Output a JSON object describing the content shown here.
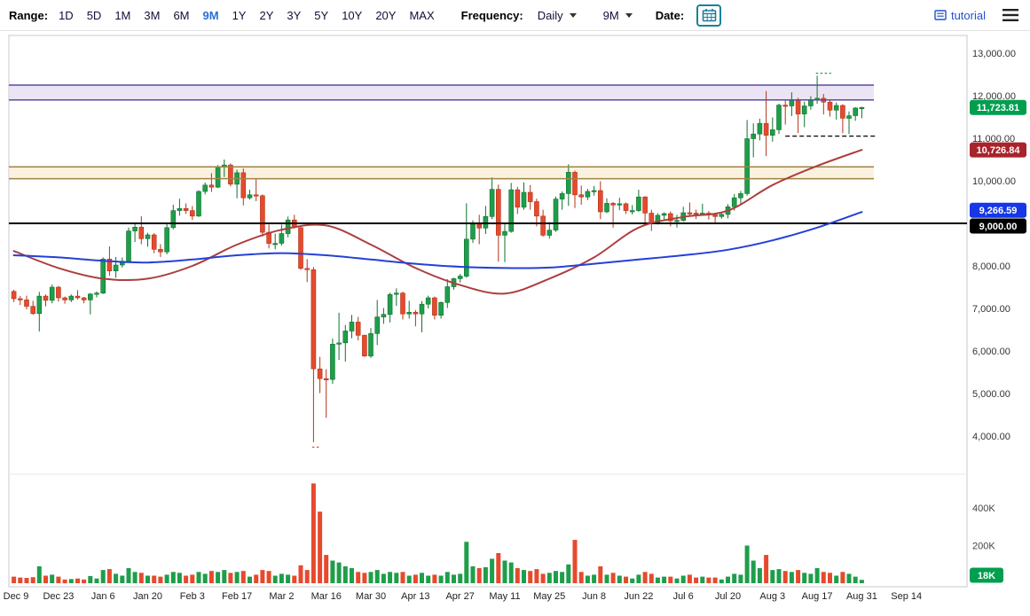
{
  "toolbar": {
    "range_label": "Range:",
    "range_options": [
      "1D",
      "5D",
      "1M",
      "3M",
      "6M",
      "9M",
      "1Y",
      "2Y",
      "3Y",
      "5Y",
      "10Y",
      "20Y",
      "MAX"
    ],
    "range_selected": "9M",
    "frequency_label": "Frequency:",
    "frequency_value": "Daily",
    "period_value": "9M",
    "date_label": "Date:",
    "tutorial_label": "tutorial"
  },
  "colors": {
    "up": "#1e9e4a",
    "up_stroke": "#11712f",
    "down": "#e64a2e",
    "down_stroke": "#b23317",
    "red_line": "#ad3e3e",
    "blue_line": "#2440d8",
    "purple_band_fill": "#e0d5f0",
    "purple_band_border": "#5b4a9e",
    "tan_band_fill": "#f7ebcd",
    "tan_band_border": "#a08343",
    "level_line": "#000000",
    "badge_green": "#009e4f",
    "badge_red": "#a8232b",
    "badge_blue": "#1537e8",
    "badge_black": "#000000",
    "axis_text": "#333333",
    "border": "#c8c8c8"
  },
  "chart_data": {
    "type": "candlestick",
    "title": "",
    "start_date": "Dec 9",
    "end_date": "Aug 31",
    "days_per_candle": 2,
    "volume_unit": "K",
    "total_slots": 150,
    "price_axis": {
      "ticks": [
        13000,
        12000,
        11000,
        10000,
        9000,
        8000,
        7000,
        6000,
        5000,
        4000
      ]
    },
    "volume_axis": {
      "ticks": [
        {
          "value_k": 400,
          "label": "400K"
        },
        {
          "value_k": 200,
          "label": "200K"
        }
      ]
    },
    "x_ticks": [
      [
        0,
        "Dec 9"
      ],
      [
        7,
        "Dec 23"
      ],
      [
        14,
        "Jan 6"
      ],
      [
        21,
        "Jan 20"
      ],
      [
        28,
        "Feb 3"
      ],
      [
        35,
        "Feb 17"
      ],
      [
        42,
        "Mar 2"
      ],
      [
        49,
        "Mar 16"
      ],
      [
        56,
        "Mar 30"
      ],
      [
        63,
        "Apr 13"
      ],
      [
        70,
        "Apr 27"
      ],
      [
        77,
        "May 11"
      ],
      [
        84,
        "May 25"
      ],
      [
        91,
        "Jun 8"
      ],
      [
        98,
        "Jun 22"
      ],
      [
        105,
        "Jul 6"
      ],
      [
        112,
        "Jul 20"
      ],
      [
        119,
        "Aug 3"
      ],
      [
        126,
        "Aug 17"
      ],
      [
        133,
        "Aug 31"
      ],
      [
        140,
        "Sep 14"
      ]
    ],
    "candles": [
      [
        7400,
        7440,
        7150,
        7230,
        35
      ],
      [
        7230,
        7290,
        7080,
        7200,
        30
      ],
      [
        7200,
        7300,
        6980,
        7050,
        28
      ],
      [
        7050,
        7180,
        6850,
        6880,
        32
      ],
      [
        6880,
        7390,
        6460,
        7290,
        90
      ],
      [
        7290,
        7330,
        7050,
        7190,
        40
      ],
      [
        7190,
        7560,
        7120,
        7500,
        45
      ],
      [
        7500,
        7530,
        7160,
        7250,
        35
      ],
      [
        7250,
        7280,
        7110,
        7200,
        20
      ],
      [
        7200,
        7330,
        7150,
        7290,
        22
      ],
      [
        7290,
        7430,
        7210,
        7250,
        25
      ],
      [
        7250,
        7270,
        7120,
        7200,
        20
      ],
      [
        7200,
        7360,
        6860,
        7340,
        38
      ],
      [
        7340,
        7400,
        7260,
        7360,
        25
      ],
      [
        7360,
        8200,
        7340,
        8160,
        70
      ],
      [
        8160,
        8460,
        7770,
        7880,
        75
      ],
      [
        7880,
        8210,
        7720,
        8020,
        50
      ],
      [
        8020,
        8200,
        7960,
        8110,
        40
      ],
      [
        8110,
        8900,
        8090,
        8820,
        80
      ],
      [
        8820,
        9010,
        8560,
        8910,
        60
      ],
      [
        8910,
        9170,
        8510,
        8640,
        55
      ],
      [
        8640,
        8780,
        8450,
        8730,
        40
      ],
      [
        8730,
        8770,
        8300,
        8390,
        40
      ],
      [
        8390,
        8510,
        8210,
        8330,
        35
      ],
      [
        8330,
        8990,
        8270,
        8900,
        45
      ],
      [
        8900,
        9440,
        8860,
        9300,
        60
      ],
      [
        9300,
        9580,
        9180,
        9350,
        55
      ],
      [
        9350,
        9470,
        9220,
        9300,
        40
      ],
      [
        9300,
        9410,
        9080,
        9170,
        45
      ],
      [
        9170,
        9780,
        9150,
        9750,
        60
      ],
      [
        9750,
        9960,
        9680,
        9900,
        50
      ],
      [
        9900,
        10180,
        9740,
        9850,
        65
      ],
      [
        9850,
        10370,
        9830,
        10330,
        60
      ],
      [
        10330,
        10500,
        10090,
        10370,
        70
      ],
      [
        10370,
        10410,
        9870,
        9920,
        55
      ],
      [
        9920,
        10260,
        9590,
        10190,
        60
      ],
      [
        10190,
        10290,
        9420,
        9600,
        65
      ],
      [
        9600,
        9790,
        9560,
        9670,
        35
      ],
      [
        9670,
        10040,
        9520,
        9650,
        45
      ],
      [
        9650,
        9680,
        8690,
        8790,
        70
      ],
      [
        8790,
        8970,
        8410,
        8530,
        65
      ],
      [
        8530,
        8760,
        8390,
        8530,
        40
      ],
      [
        8530,
        8970,
        8480,
        8760,
        50
      ],
      [
        8760,
        9160,
        8670,
        9080,
        45
      ],
      [
        9080,
        9200,
        8880,
        8900,
        40
      ],
      [
        8900,
        8910,
        7910,
        7940,
        95
      ],
      [
        7940,
        8160,
        7620,
        7910,
        70
      ],
      [
        7910,
        7970,
        3860,
        5580,
        530
      ],
      [
        5580,
        5860,
        5010,
        5350,
        380
      ],
      [
        5350,
        5570,
        4430,
        5330,
        150
      ],
      [
        5330,
        6290,
        5230,
        6160,
        120
      ],
      [
        6160,
        6900,
        5790,
        6190,
        110
      ],
      [
        6190,
        6610,
        5750,
        6470,
        90
      ],
      [
        6470,
        6850,
        6300,
        6680,
        80
      ],
      [
        6680,
        6800,
        6250,
        6370,
        60
      ],
      [
        6370,
        6380,
        5860,
        5880,
        55
      ],
      [
        5880,
        6540,
        5840,
        6410,
        60
      ],
      [
        6410,
        7200,
        6140,
        6800,
        70
      ],
      [
        6800,
        7010,
        6640,
        6860,
        50
      ],
      [
        6860,
        7370,
        6670,
        7330,
        60
      ],
      [
        7330,
        7470,
        7060,
        7360,
        55
      ],
      [
        7360,
        7390,
        6740,
        6870,
        60
      ],
      [
        6870,
        7180,
        6760,
        6910,
        40
      ],
      [
        6910,
        6960,
        6580,
        6870,
        45
      ],
      [
        6870,
        7170,
        6440,
        7100,
        55
      ],
      [
        7100,
        7300,
        7000,
        7250,
        40
      ],
      [
        7250,
        7280,
        6740,
        6840,
        45
      ],
      [
        6840,
        7160,
        6760,
        7140,
        40
      ],
      [
        7140,
        7690,
        7010,
        7510,
        60
      ],
      [
        7510,
        7720,
        7440,
        7700,
        45
      ],
      [
        7700,
        7810,
        7610,
        7760,
        50
      ],
      [
        7760,
        9470,
        7720,
        8630,
        220
      ],
      [
        8630,
        9070,
        8540,
        8980,
        90
      ],
      [
        8980,
        9200,
        8510,
        8890,
        80
      ],
      [
        8890,
        9410,
        8750,
        9160,
        85
      ],
      [
        9160,
        10080,
        9100,
        9800,
        130
      ],
      [
        9800,
        9910,
        8100,
        8720,
        160
      ],
      [
        8720,
        8990,
        8090,
        8810,
        120
      ],
      [
        8810,
        9950,
        8780,
        9790,
        110
      ],
      [
        9790,
        9860,
        9220,
        9380,
        80
      ],
      [
        9380,
        9960,
        9320,
        9730,
        70
      ],
      [
        9730,
        9900,
        9320,
        9510,
        65
      ],
      [
        9510,
        9580,
        8930,
        9170,
        75
      ],
      [
        9170,
        9320,
        8690,
        8720,
        50
      ],
      [
        8720,
        9030,
        8640,
        8840,
        55
      ],
      [
        8840,
        9630,
        8800,
        9570,
        65
      ],
      [
        9570,
        9750,
        9320,
        9700,
        60
      ],
      [
        9700,
        10390,
        9410,
        10200,
        100
      ],
      [
        10200,
        10240,
        9360,
        9670,
        230
      ],
      [
        9670,
        9890,
        9440,
        9620,
        60
      ],
      [
        9620,
        9810,
        9550,
        9750,
        40
      ],
      [
        9750,
        9880,
        9650,
        9770,
        45
      ],
      [
        9770,
        9990,
        9100,
        9270,
        90
      ],
      [
        9270,
        9590,
        9240,
        9470,
        45
      ],
      [
        9470,
        9500,
        8900,
        9430,
        55
      ],
      [
        9430,
        9600,
        9310,
        9460,
        40
      ],
      [
        9460,
        9490,
        9220,
        9300,
        35
      ],
      [
        9300,
        9430,
        9210,
        9300,
        25
      ],
      [
        9300,
        9790,
        9270,
        9620,
        45
      ],
      [
        9620,
        9640,
        9000,
        9240,
        60
      ],
      [
        9240,
        9320,
        8820,
        9010,
        50
      ],
      [
        9010,
        9240,
        8970,
        9190,
        30
      ],
      [
        9190,
        9260,
        9070,
        9230,
        35
      ],
      [
        9230,
        9280,
        8930,
        9060,
        35
      ],
      [
        9060,
        9200,
        8900,
        9070,
        25
      ],
      [
        9070,
        9390,
        9040,
        9250,
        40
      ],
      [
        9250,
        9490,
        9160,
        9240,
        45
      ],
      [
        9240,
        9320,
        9100,
        9230,
        30
      ],
      [
        9230,
        9460,
        9190,
        9240,
        35
      ],
      [
        9240,
        9290,
        9090,
        9200,
        30
      ],
      [
        9200,
        9240,
        8990,
        9160,
        30
      ],
      [
        9160,
        9260,
        9110,
        9210,
        20
      ],
      [
        9210,
        9450,
        9120,
        9390,
        35
      ],
      [
        9390,
        9690,
        9300,
        9600,
        50
      ],
      [
        9600,
        9760,
        9460,
        9700,
        45
      ],
      [
        9700,
        11430,
        9650,
        10990,
        200
      ],
      [
        10990,
        11350,
        10550,
        11100,
        120
      ],
      [
        11100,
        11460,
        10950,
        11350,
        80
      ],
      [
        11350,
        12110,
        10580,
        11070,
        150
      ],
      [
        11070,
        11490,
        10920,
        11200,
        70
      ],
      [
        11200,
        11810,
        11100,
        11780,
        75
      ],
      [
        11780,
        11910,
        11320,
        11760,
        65
      ],
      [
        11760,
        12080,
        11520,
        11890,
        60
      ],
      [
        11890,
        11950,
        11120,
        11570,
        70
      ],
      [
        11570,
        11860,
        11260,
        11760,
        55
      ],
      [
        11760,
        11990,
        11670,
        11910,
        50
      ],
      [
        11910,
        12470,
        11810,
        11940,
        80
      ],
      [
        11940,
        12040,
        11560,
        11850,
        60
      ],
      [
        11850,
        11890,
        11510,
        11660,
        55
      ],
      [
        11660,
        11840,
        11440,
        11770,
        40
      ],
      [
        11770,
        11800,
        11120,
        11470,
        60
      ],
      [
        11470,
        11630,
        11100,
        11530,
        50
      ],
      [
        11530,
        11730,
        11410,
        11710,
        35
      ],
      [
        11710,
        11740,
        11470,
        11723.81,
        18
      ]
    ],
    "red_line": {
      "anchor_step": 7,
      "values": [
        8350,
        7950,
        7700,
        7700,
        8000,
        8500,
        8850,
        8950,
        8500,
        7950,
        7550,
        7350,
        7700,
        8200,
        8900,
        9150,
        9300,
        9900,
        10350,
        10726.84
      ],
      "current_value": 10726.84
    },
    "blue_line": {
      "anchor_step": 7,
      "values": [
        8250,
        8200,
        8120,
        8080,
        8150,
        8250,
        8300,
        8250,
        8150,
        8050,
        7980,
        7950,
        7960,
        8050,
        8150,
        8250,
        8380,
        8600,
        8900,
        9266.59
      ],
      "current_value": 9266.59
    },
    "annotations": {
      "purple_band": {
        "from": 11900,
        "to": 12250
      },
      "tan_band": {
        "from": 10050,
        "to": 10330
      },
      "black_line": 9000,
      "dashed_line": {
        "value": 11050,
        "from_index": 121,
        "to_index": 135.3
      },
      "peak_marker": {
        "value": 12530,
        "from_index": 125.8,
        "to_index": 128.2
      },
      "low_marker": {
        "value": 3740,
        "from_index": 46.8,
        "to_index": 48.2
      }
    },
    "badges": {
      "last_price": "11,723.81",
      "red_line": "10,726.84",
      "blue_line": "9,266.59",
      "level": "9,000.00",
      "volume": "18K"
    }
  }
}
